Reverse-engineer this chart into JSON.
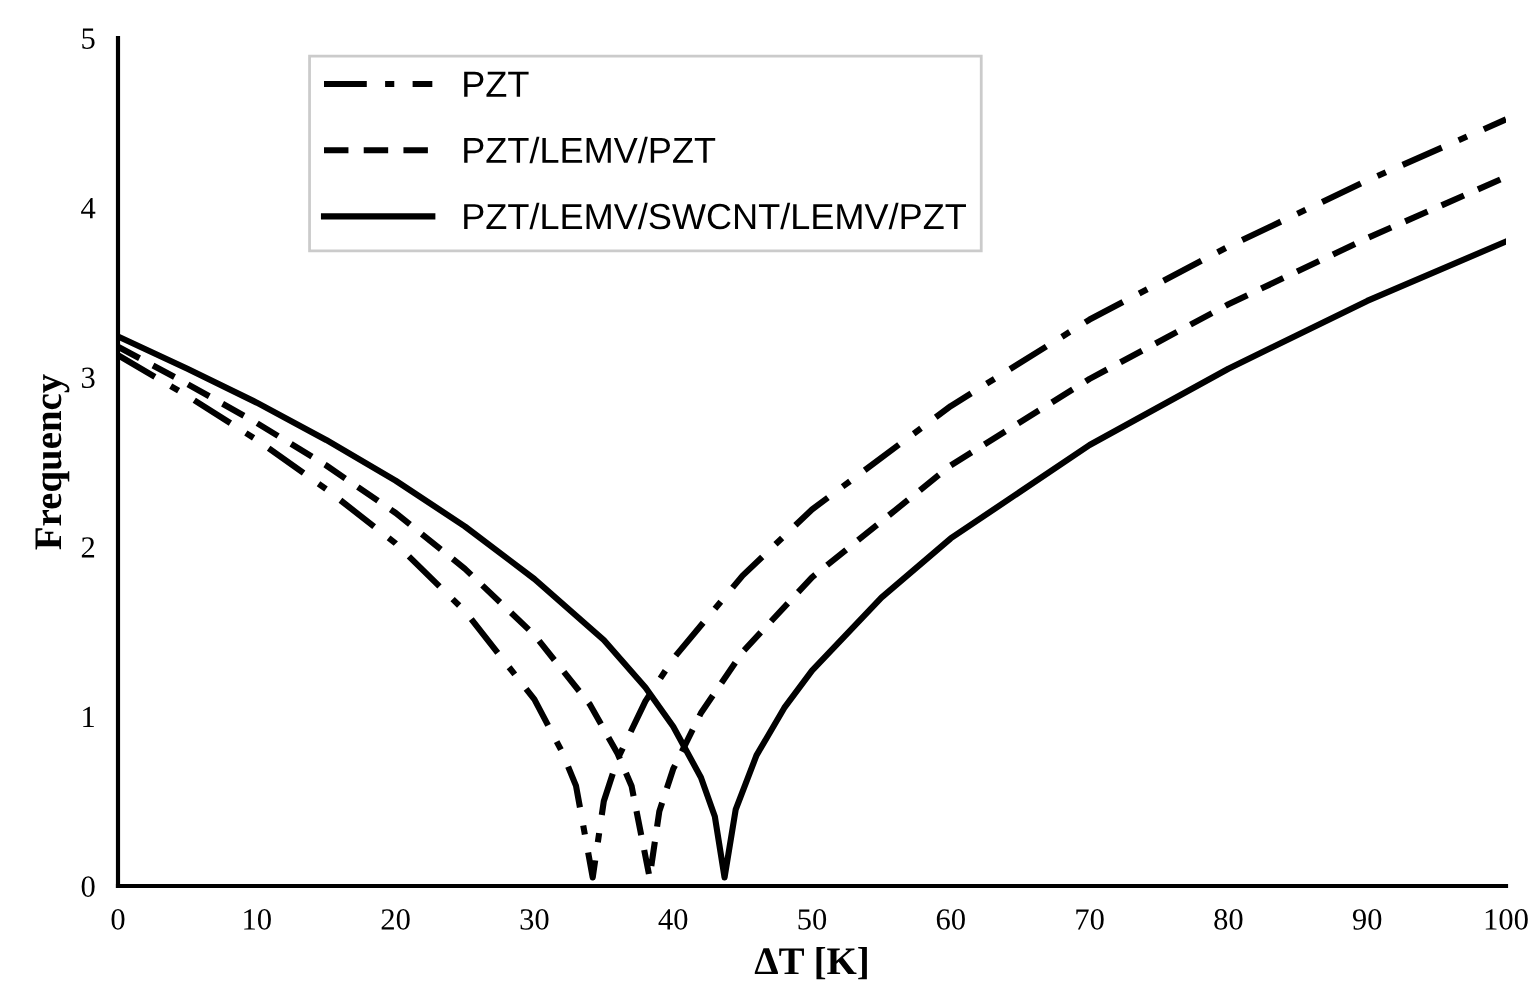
{
  "chart_data": {
    "type": "line",
    "xlabel": "ΔT [K]",
    "ylabel": "Frequency",
    "xlim": [
      0,
      100
    ],
    "xticks": [
      0,
      10,
      20,
      30,
      40,
      50,
      60,
      70,
      80,
      90,
      100
    ],
    "ylim": [
      0,
      5
    ],
    "yticks": [
      0,
      1,
      2,
      3,
      4,
      5
    ],
    "grid": false,
    "legend": "top left",
    "marker": "none",
    "series": [
      {
        "name": "PZT",
        "color": "#000000",
        "line_style": "dashdot",
        "x": [
          0,
          5,
          10,
          15,
          20,
          25,
          30,
          32,
          33,
          34.2,
          35,
          36,
          38,
          40,
          45,
          50,
          60,
          70,
          80,
          90,
          100
        ],
        "values": [
          3.13,
          2.89,
          2.63,
          2.34,
          2.02,
          1.62,
          1.1,
          0.79,
          0.59,
          0.05,
          0.5,
          0.75,
          1.09,
          1.34,
          1.83,
          2.22,
          2.83,
          3.34,
          3.77,
          4.16,
          4.52
        ]
      },
      {
        "name": "PZT/LEMV/PZT",
        "color": "#000000",
        "line_style": "dashed",
        "x": [
          0,
          5,
          10,
          15,
          20,
          25,
          30,
          34,
          36,
          37,
          38.3,
          39,
          40,
          42,
          45,
          50,
          60,
          70,
          80,
          90,
          100
        ],
        "values": [
          3.18,
          2.96,
          2.73,
          2.48,
          2.2,
          1.87,
          1.48,
          1.07,
          0.78,
          0.59,
          0.05,
          0.44,
          0.69,
          1.02,
          1.38,
          1.82,
          2.48,
          2.99,
          3.43,
          3.82,
          4.18
        ]
      },
      {
        "name": "PZT/LEMV/SWCNT/LEMV/PZT",
        "color": "#000000",
        "line_style": "solid",
        "x": [
          0,
          5,
          10,
          15,
          20,
          25,
          30,
          35,
          38,
          40,
          42,
          43,
          43.7,
          44.5,
          46,
          48,
          50,
          55,
          60,
          70,
          80,
          90,
          100
        ],
        "values": [
          3.24,
          3.05,
          2.85,
          2.63,
          2.39,
          2.12,
          1.81,
          1.45,
          1.17,
          0.94,
          0.64,
          0.41,
          0.05,
          0.45,
          0.77,
          1.05,
          1.27,
          1.7,
          2.05,
          2.6,
          3.05,
          3.45,
          3.8
        ]
      }
    ]
  }
}
